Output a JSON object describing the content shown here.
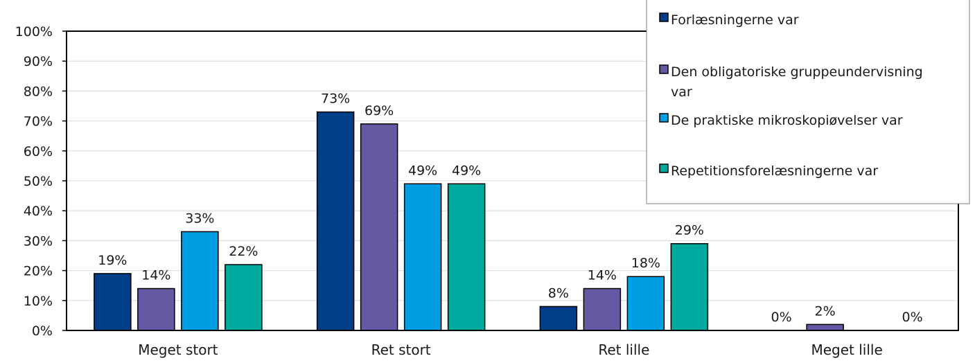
{
  "chart_data": {
    "type": "bar",
    "categories": [
      "Meget stort",
      "Ret stort",
      "Ret lille",
      "Meget lille"
    ],
    "series": [
      {
        "name": "Forlæsningerne var",
        "color": "#003f87",
        "values": [
          19,
          73,
          8,
          0
        ],
        "labels": [
          "19%",
          "73%",
          "8%",
          "0%"
        ]
      },
      {
        "name": "Den obligatoriske gruppeundervisning var",
        "color": "#6559a3",
        "values": [
          14,
          69,
          14,
          2
        ],
        "labels": [
          "14%",
          "69%",
          "14%",
          "2%"
        ]
      },
      {
        "name": "De praktiske mikroskopiøvelser var",
        "color": "#009fe3",
        "values": [
          33,
          49,
          18,
          0
        ],
        "labels": [
          "33%",
          "49%",
          "18%",
          ""
        ]
      },
      {
        "name": "Repetitionsforelæsningerne var",
        "color": "#00a99d",
        "values": [
          22,
          49,
          29,
          0
        ],
        "labels": [
          "22%",
          "49%",
          "29%",
          "0%"
        ]
      }
    ],
    "yticks": [
      "0%",
      "10%",
      "20%",
      "30%",
      "40%",
      "50%",
      "60%",
      "70%",
      "80%",
      "90%",
      "100%"
    ],
    "ylim": [
      0,
      100
    ],
    "grid": true,
    "legend": "top-right"
  }
}
